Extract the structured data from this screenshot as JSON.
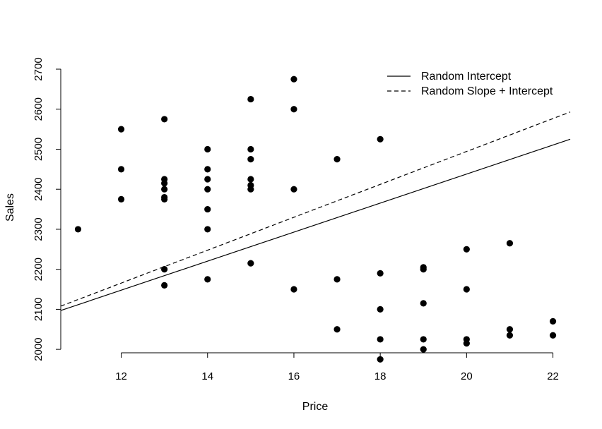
{
  "chart_data": {
    "type": "scatter",
    "xlabel": "Price",
    "ylabel": "Sales",
    "xlim": [
      10.6,
      22.4
    ],
    "ylim": [
      1972,
      2730
    ],
    "x_ticks": [
      12,
      14,
      16,
      18,
      20,
      22
    ],
    "y_ticks": [
      2000,
      2100,
      2200,
      2300,
      2400,
      2500,
      2600,
      2700
    ],
    "grid": false,
    "legend_position": "top-right",
    "points": [
      {
        "x": 11,
        "y": 2300
      },
      {
        "x": 12,
        "y": 2550
      },
      {
        "x": 12,
        "y": 2450
      },
      {
        "x": 12,
        "y": 2375
      },
      {
        "x": 13,
        "y": 2575
      },
      {
        "x": 13,
        "y": 2425
      },
      {
        "x": 13,
        "y": 2415
      },
      {
        "x": 13,
        "y": 2400
      },
      {
        "x": 13,
        "y": 2380
      },
      {
        "x": 13,
        "y": 2375
      },
      {
        "x": 13,
        "y": 2200
      },
      {
        "x": 13,
        "y": 2160
      },
      {
        "x": 14,
        "y": 2500
      },
      {
        "x": 14,
        "y": 2450
      },
      {
        "x": 14,
        "y": 2425
      },
      {
        "x": 14,
        "y": 2400
      },
      {
        "x": 14,
        "y": 2350
      },
      {
        "x": 14,
        "y": 2300
      },
      {
        "x": 14,
        "y": 2175
      },
      {
        "x": 15,
        "y": 2625
      },
      {
        "x": 15,
        "y": 2500
      },
      {
        "x": 15,
        "y": 2475
      },
      {
        "x": 15,
        "y": 2425
      },
      {
        "x": 15,
        "y": 2410
      },
      {
        "x": 15,
        "y": 2400
      },
      {
        "x": 15,
        "y": 2215
      },
      {
        "x": 16,
        "y": 2675
      },
      {
        "x": 16,
        "y": 2600
      },
      {
        "x": 16,
        "y": 2400
      },
      {
        "x": 16,
        "y": 2150
      },
      {
        "x": 17,
        "y": 2475
      },
      {
        "x": 17,
        "y": 2175
      },
      {
        "x": 17,
        "y": 2050
      },
      {
        "x": 18,
        "y": 2525
      },
      {
        "x": 18,
        "y": 2190
      },
      {
        "x": 18,
        "y": 2100
      },
      {
        "x": 18,
        "y": 2025
      },
      {
        "x": 18,
        "y": 1975
      },
      {
        "x": 19,
        "y": 2205
      },
      {
        "x": 19,
        "y": 2200
      },
      {
        "x": 19,
        "y": 2115
      },
      {
        "x": 19,
        "y": 2025
      },
      {
        "x": 19,
        "y": 2000
      },
      {
        "x": 20,
        "y": 2250
      },
      {
        "x": 20,
        "y": 2150
      },
      {
        "x": 20,
        "y": 2025
      },
      {
        "x": 20,
        "y": 2015
      },
      {
        "x": 21,
        "y": 2265
      },
      {
        "x": 21,
        "y": 2050
      },
      {
        "x": 21,
        "y": 2035
      },
      {
        "x": 22,
        "y": 2070
      },
      {
        "x": 22,
        "y": 2035
      }
    ],
    "series": [
      {
        "name": "Random Intercept",
        "style": "solid",
        "line": [
          {
            "x": 10.6,
            "y": 2097
          },
          {
            "x": 22.4,
            "y": 2525
          }
        ]
      },
      {
        "name": "Random Slope + Intercept",
        "style": "dashed",
        "line": [
          {
            "x": 10.6,
            "y": 2108
          },
          {
            "x": 22.4,
            "y": 2593
          }
        ]
      }
    ],
    "colors": {
      "points": "#000000",
      "lines": "#000000"
    }
  }
}
